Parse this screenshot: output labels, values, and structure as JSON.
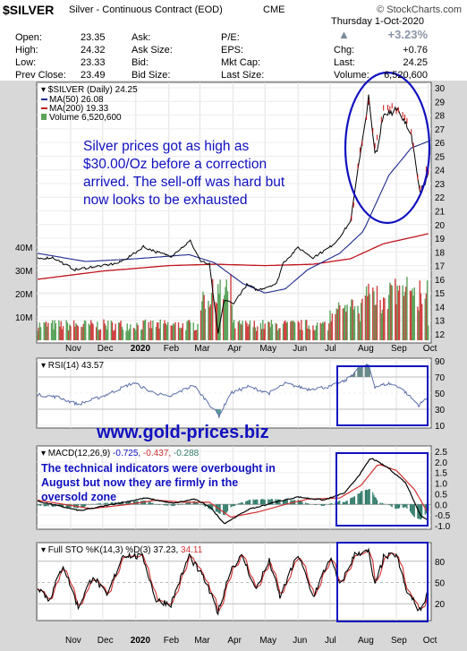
{
  "header": {
    "symbol": "$SILVER",
    "name": "Silver - Continuous Contract (EOD)",
    "exchange": "CME",
    "watermark": "© StockCharts.com",
    "date": "Thursday  1-Oct-2020",
    "open_label": "Open:",
    "open": "23.35",
    "high_label": "High:",
    "high": "24.32",
    "low_label": "Low:",
    "low": "23.33",
    "prevclose_label": "Prev Close:",
    "prevclose": "23.49",
    "ask_label": "Ask:",
    "ask": "",
    "asksize_label": "Ask Size:",
    "asksize": "",
    "bid_label": "Bid:",
    "bid": "",
    "bidsize_label": "Bid Size:",
    "bidsize": "",
    "pe_label": "P/E:",
    "pe": "",
    "eps_label": "EPS:",
    "eps": "",
    "mktcap_label": "Mkt Cap:",
    "mktcap": "",
    "lastsize_label": "Last Size:",
    "lastsize": "",
    "pct_change": "+3.23%",
    "chg_label": "Chg:",
    "chg": "+0.76",
    "last_label": "Last:",
    "last": "24.25",
    "volume_label": "Volume:",
    "volume": "6,520,600"
  },
  "colors": {
    "price": "#000000",
    "ma50": "#1f2a8c",
    "ma200": "#c0141c",
    "volume_up": "#5aa35a",
    "volume_down": "#d04040",
    "annotation": "#1010c0",
    "highlight": "#1010c0",
    "rsi_line": "#5a6ea8",
    "macd_hist": "#2f7a6a"
  },
  "annotations": {
    "price_note": [
      "Silver prices got as high as",
      "$30.00/Oz before a correction",
      "arrived. The sell-off was hard but",
      "now looks to be exhausted"
    ],
    "website": "www.gold-prices.biz",
    "macd_note": [
      "The technical indicators were overbought in",
      "August but now they are firmly in the",
      "oversold zone"
    ]
  },
  "chart_data": [
    {
      "type": "line",
      "panel": "price",
      "legend": [
        {
          "name": "$SILVER (Daily)",
          "value": "24.25"
        },
        {
          "name": "MA(50)",
          "value": "26.08"
        },
        {
          "name": "MA(200)",
          "value": "19.33"
        },
        {
          "name": "Volume",
          "value": "6,520,600"
        }
      ],
      "ylim": [
        12,
        30
      ],
      "yticks": [
        12,
        13,
        14,
        15,
        16,
        17,
        18,
        19,
        20,
        21,
        22,
        23,
        24,
        25,
        26,
        27,
        28,
        29,
        30
      ],
      "volume_ticks": [
        "10M",
        "20M",
        "30M",
        "40M"
      ],
      "volume_ylim": [
        0,
        50
      ],
      "x_labels": [
        "Nov",
        "Dec",
        "2020",
        "Feb",
        "Mar",
        "Apr",
        "May",
        "Jun",
        "Jul",
        "Aug",
        "Sep",
        "Oct"
      ],
      "x_months": [
        "2019-10",
        "2019-11",
        "2019-12",
        "2020-01",
        "2020-02",
        "2020-03",
        "2020-04",
        "2020-05",
        "2020-06",
        "2020-07",
        "2020-08",
        "2020-09",
        "2020-10"
      ],
      "price_key": [
        [
          "2019-10-01",
          17.5
        ],
        [
          "2019-10-15",
          17.6
        ],
        [
          "2019-11-05",
          16.7
        ],
        [
          "2019-11-20",
          16.9
        ],
        [
          "2019-12-02",
          17.0
        ],
        [
          "2019-12-16",
          17.2
        ],
        [
          "2019-12-31",
          17.9
        ],
        [
          "2020-01-08",
          18.4
        ],
        [
          "2020-01-20",
          18.0
        ],
        [
          "2020-02-03",
          17.7
        ],
        [
          "2020-02-21",
          18.8
        ],
        [
          "2020-03-02",
          17.3
        ],
        [
          "2020-03-10",
          17.1
        ],
        [
          "2020-03-18",
          12.0
        ],
        [
          "2020-03-24",
          14.5
        ],
        [
          "2020-04-01",
          14.2
        ],
        [
          "2020-04-14",
          15.6
        ],
        [
          "2020-04-24",
          15.2
        ],
        [
          "2020-05-12",
          15.7
        ],
        [
          "2020-05-18",
          17.2
        ],
        [
          "2020-06-01",
          18.3
        ],
        [
          "2020-06-15",
          17.6
        ],
        [
          "2020-06-30",
          18.3
        ],
        [
          "2020-07-07",
          18.8
        ],
        [
          "2020-07-20",
          20.2
        ],
        [
          "2020-07-28",
          24.5
        ],
        [
          "2020-08-06",
          29.3
        ],
        [
          "2020-08-12",
          25.0
        ],
        [
          "2020-08-20",
          27.8
        ],
        [
          "2020-09-01",
          28.6
        ],
        [
          "2020-09-14",
          27.0
        ],
        [
          "2020-09-23",
          22.2
        ],
        [
          "2020-09-28",
          23.0
        ],
        [
          "2020-10-01",
          24.25
        ]
      ],
      "ma50_key": [
        [
          "2019-10-01",
          17.9
        ],
        [
          "2019-11-15",
          17.3
        ],
        [
          "2020-01-01",
          17.5
        ],
        [
          "2020-02-20",
          17.8
        ],
        [
          "2020-03-15",
          17.2
        ],
        [
          "2020-04-10",
          15.7
        ],
        [
          "2020-05-01",
          15.0
        ],
        [
          "2020-05-20",
          15.3
        ],
        [
          "2020-06-10",
          16.7
        ],
        [
          "2020-07-10",
          17.9
        ],
        [
          "2020-08-01",
          19.5
        ],
        [
          "2020-08-25",
          23.6
        ],
        [
          "2020-09-15",
          25.6
        ],
        [
          "2020-10-01",
          26.08
        ]
      ],
      "ma200_key": [
        [
          "2019-10-01",
          16.0
        ],
        [
          "2019-12-01",
          16.6
        ],
        [
          "2020-02-01",
          17.0
        ],
        [
          "2020-03-15",
          17.1
        ],
        [
          "2020-05-01",
          17.0
        ],
        [
          "2020-06-15",
          17.1
        ],
        [
          "2020-07-20",
          17.5
        ],
        [
          "2020-08-20",
          18.6
        ],
        [
          "2020-10-01",
          19.33
        ]
      ]
    },
    {
      "type": "line",
      "panel": "rsi",
      "legend": [
        {
          "name": "RSI(14)",
          "value": "43.57"
        }
      ],
      "ylim": [
        10,
        90
      ],
      "yticks": [
        10,
        30,
        50,
        70,
        90
      ],
      "rsi_key": [
        [
          "2019-10-01",
          48
        ],
        [
          "2019-10-20",
          45
        ],
        [
          "2019-11-08",
          36
        ],
        [
          "2019-12-01",
          46
        ],
        [
          "2019-12-30",
          63
        ],
        [
          "2020-01-15",
          52
        ],
        [
          "2020-02-01",
          45
        ],
        [
          "2020-02-24",
          60
        ],
        [
          "2020-03-12",
          33
        ],
        [
          "2020-03-19",
          22
        ],
        [
          "2020-03-30",
          50
        ],
        [
          "2020-04-15",
          58
        ],
        [
          "2020-05-05",
          50
        ],
        [
          "2020-05-20",
          62
        ],
        [
          "2020-06-10",
          55
        ],
        [
          "2020-07-01",
          58
        ],
        [
          "2020-07-15",
          65
        ],
        [
          "2020-07-27",
          80
        ],
        [
          "2020-08-06",
          85
        ],
        [
          "2020-08-12",
          58
        ],
        [
          "2020-08-25",
          62
        ],
        [
          "2020-09-05",
          57
        ],
        [
          "2020-09-22",
          35
        ],
        [
          "2020-09-28",
          42
        ],
        [
          "2020-10-01",
          43.57
        ]
      ]
    },
    {
      "type": "line",
      "panel": "macd",
      "legend": [
        {
          "name": "MACD(12,26,9)",
          "values": [
            "-0.725",
            "-0.437",
            "-0.288"
          ]
        }
      ],
      "ylim": [
        -1.0,
        2.5
      ],
      "yticks": [
        -1.0,
        -0.5,
        0.0,
        0.5,
        1.0,
        1.5,
        2.0,
        2.5
      ],
      "macd_key": [
        [
          "2019-10-01",
          0.15
        ],
        [
          "2019-11-10",
          -0.3
        ],
        [
          "2019-12-15",
          0.05
        ],
        [
          "2020-01-10",
          0.3
        ],
        [
          "2020-02-05",
          0.05
        ],
        [
          "2020-02-25",
          0.25
        ],
        [
          "2020-03-10",
          -0.1
        ],
        [
          "2020-03-24",
          -0.9
        ],
        [
          "2020-04-15",
          -0.25
        ],
        [
          "2020-05-10",
          0.1
        ],
        [
          "2020-06-01",
          0.35
        ],
        [
          "2020-06-25",
          0.2
        ],
        [
          "2020-07-15",
          0.55
        ],
        [
          "2020-07-30",
          1.5
        ],
        [
          "2020-08-08",
          2.2
        ],
        [
          "2020-08-25",
          1.7
        ],
        [
          "2020-09-10",
          1.0
        ],
        [
          "2020-09-24",
          -0.55
        ],
        [
          "2020-10-01",
          -0.725
        ]
      ],
      "signal_key": [
        [
          "2019-10-01",
          0.2
        ],
        [
          "2019-11-20",
          -0.2
        ],
        [
          "2019-12-25",
          0.0
        ],
        [
          "2020-01-20",
          0.2
        ],
        [
          "2020-02-15",
          0.1
        ],
        [
          "2020-03-10",
          0.1
        ],
        [
          "2020-03-30",
          -0.6
        ],
        [
          "2020-04-25",
          -0.35
        ],
        [
          "2020-05-20",
          0.0
        ],
        [
          "2020-06-10",
          0.25
        ],
        [
          "2020-07-10",
          0.3
        ],
        [
          "2020-07-30",
          0.9
        ],
        [
          "2020-08-15",
          1.9
        ],
        [
          "2020-09-01",
          1.6
        ],
        [
          "2020-09-18",
          0.7
        ],
        [
          "2020-10-01",
          -0.437
        ]
      ]
    },
    {
      "type": "line",
      "panel": "stochastic",
      "legend": [
        {
          "name": "Full STO %K(14,3) %D(3)",
          "values": [
            "37.23",
            "34.11"
          ]
        }
      ],
      "ylim": [
        0,
        100
      ],
      "yticks": [
        20,
        50,
        80
      ],
      "stok_key": [
        [
          "2019-10-01",
          45
        ],
        [
          "2019-10-12",
          25
        ],
        [
          "2019-10-25",
          75
        ],
        [
          "2019-11-08",
          15
        ],
        [
          "2019-11-22",
          60
        ],
        [
          "2019-12-05",
          30
        ],
        [
          "2019-12-20",
          90
        ],
        [
          "2020-01-08",
          85
        ],
        [
          "2020-01-20",
          25
        ],
        [
          "2020-02-03",
          20
        ],
        [
          "2020-02-20",
          88
        ],
        [
          "2020-03-05",
          55
        ],
        [
          "2020-03-18",
          8
        ],
        [
          "2020-03-30",
          70
        ],
        [
          "2020-04-10",
          88
        ],
        [
          "2020-04-22",
          40
        ],
        [
          "2020-05-05",
          80
        ],
        [
          "2020-05-15",
          30
        ],
        [
          "2020-06-01",
          90
        ],
        [
          "2020-06-15",
          30
        ],
        [
          "2020-07-01",
          85
        ],
        [
          "2020-07-10",
          45
        ],
        [
          "2020-07-25",
          92
        ],
        [
          "2020-08-06",
          93
        ],
        [
          "2020-08-12",
          45
        ],
        [
          "2020-08-20",
          85
        ],
        [
          "2020-09-01",
          90
        ],
        [
          "2020-09-10",
          40
        ],
        [
          "2020-09-23",
          10
        ],
        [
          "2020-10-01",
          37.23
        ]
      ]
    }
  ]
}
